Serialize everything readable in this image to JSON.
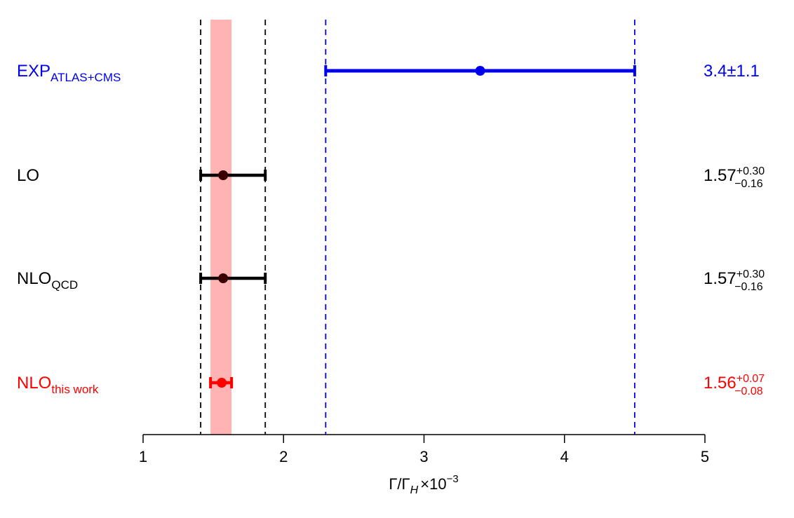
{
  "chart_data": {
    "type": "scatter",
    "title": "",
    "xlabel": {
      "main": "Γ/Γ",
      "sub": "H",
      "factor": "×10",
      "exp": "−3"
    },
    "xlim": [
      1,
      5
    ],
    "xticks": [
      "1",
      "2",
      "3",
      "4",
      "5"
    ],
    "grid": false,
    "band": {
      "lo": 1.48,
      "hi": 1.63,
      "color": "#ffb3b3"
    },
    "vlines": [
      {
        "x": 1.41,
        "color": "#000000"
      },
      {
        "x": 1.87,
        "color": "#000000"
      },
      {
        "x": 2.3,
        "color": "#0000ee"
      },
      {
        "x": 4.5,
        "color": "#0000ee"
      }
    ],
    "series": [
      {
        "label_main": "EXP",
        "label_sub": "ATLAS+CMS",
        "value": 3.4,
        "lo": 2.3,
        "hi": 4.5,
        "color": "#0000ee",
        "result_main": "3.4±1.1",
        "result_up": "",
        "result_down": ""
      },
      {
        "label_main": "LO",
        "label_sub": "",
        "value": 1.57,
        "lo": 1.41,
        "hi": 1.87,
        "color": "#000000",
        "marker_color": "#3a0000",
        "result_main": "1.57",
        "result_up": "+0.30",
        "result_down": "−0.16"
      },
      {
        "label_main": "NLO",
        "label_sub": "QCD",
        "value": 1.57,
        "lo": 1.41,
        "hi": 1.87,
        "color": "#000000",
        "marker_color": "#3a0000",
        "result_main": "1.57",
        "result_up": "+0.30",
        "result_down": "−0.16"
      },
      {
        "label_main": "NLO",
        "label_sub": "this work",
        "value": 1.56,
        "lo": 1.48,
        "hi": 1.63,
        "color": "#ff0000",
        "marker_color": "#ff0000",
        "result_main": "1.56",
        "result_up": "+0.07",
        "result_down": "−0.08"
      }
    ]
  }
}
